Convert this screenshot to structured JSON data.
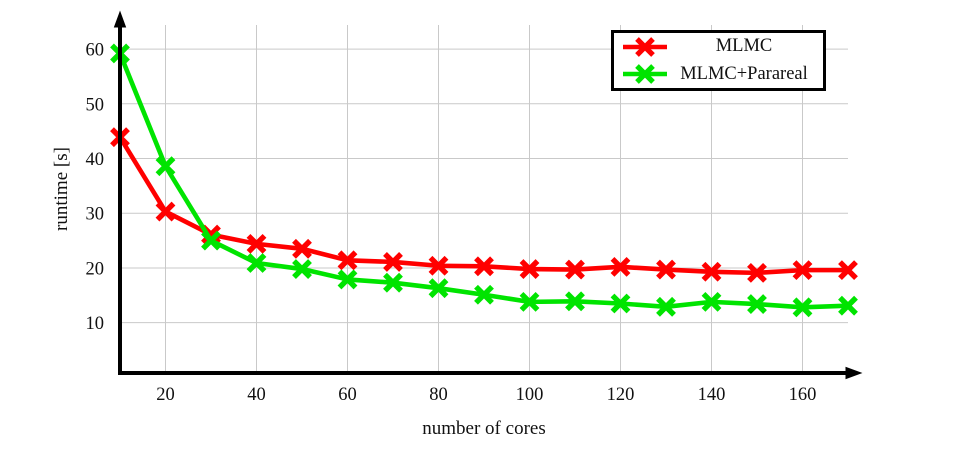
{
  "chart_data": {
    "type": "line",
    "title": "",
    "xlabel": "number of cores",
    "ylabel": "runtime [s]",
    "x": [
      10,
      20,
      30,
      40,
      50,
      60,
      70,
      80,
      90,
      100,
      110,
      120,
      130,
      140,
      150,
      160,
      170
    ],
    "series": [
      {
        "name": "MLMC",
        "color": "#ff0000",
        "marker": "x",
        "values": [
          43.9,
          30.3,
          26.1,
          24.4,
          23.5,
          21.4,
          21.1,
          20.4,
          20.3,
          19.8,
          19.7,
          20.2,
          19.7,
          19.3,
          19.1,
          19.6,
          19.6
        ]
      },
      {
        "name": "MLMC+Parareal",
        "color": "#00e400",
        "marker": "x",
        "values": [
          59.2,
          38.6,
          25.0,
          20.9,
          19.8,
          17.9,
          17.3,
          16.3,
          15.1,
          13.8,
          13.9,
          13.5,
          12.9,
          13.8,
          13.4,
          12.8,
          13.1
        ]
      }
    ],
    "x_ticks": [
      20,
      40,
      60,
      80,
      100,
      120,
      140,
      160
    ],
    "y_ticks": [
      10,
      20,
      30,
      40,
      50,
      60
    ],
    "xlim": [
      10,
      170
    ],
    "ylim": [
      0.8,
      64.4
    ],
    "grid": true,
    "grid_color": "#c9c9c9",
    "axis_color": "#000000",
    "legend_position": "top-right"
  }
}
